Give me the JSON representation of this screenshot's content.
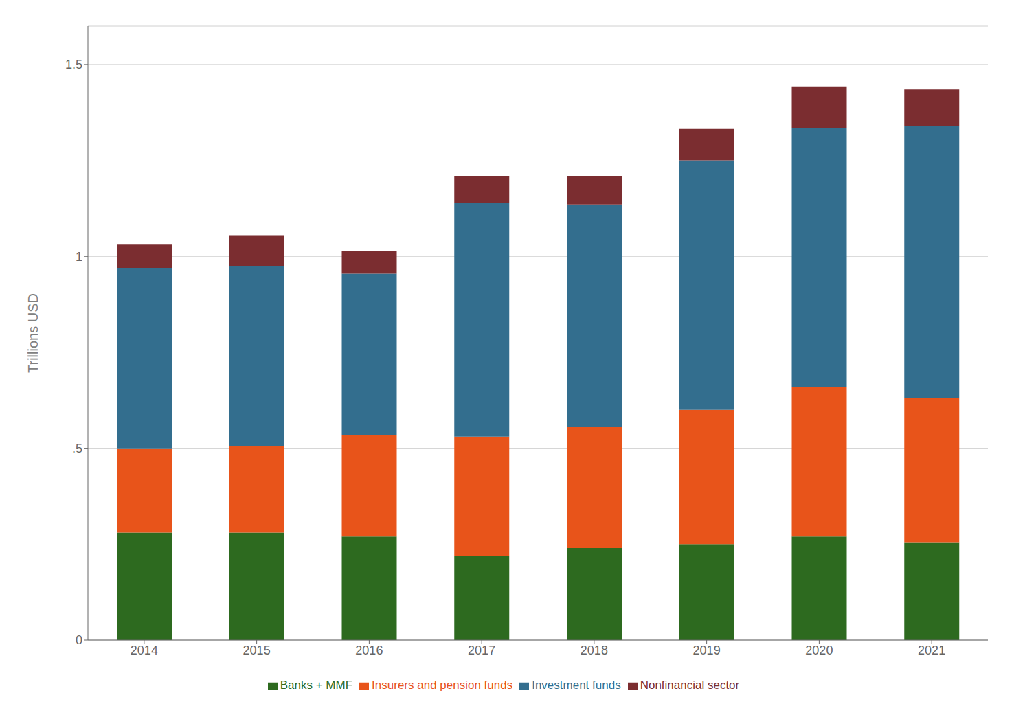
{
  "chart_data": {
    "type": "bar",
    "stacked": true,
    "categories": [
      "2014",
      "2015",
      "2016",
      "2017",
      "2018",
      "2019",
      "2020",
      "2021"
    ],
    "series": [
      {
        "name": "Banks + MMF",
        "color": "#2d6a1f",
        "values": [
          0.28,
          0.28,
          0.27,
          0.22,
          0.24,
          0.25,
          0.27,
          0.255
        ]
      },
      {
        "name": "Insurers and pension funds",
        "color": "#e8541a",
        "values": [
          0.22,
          0.225,
          0.265,
          0.31,
          0.315,
          0.35,
          0.39,
          0.375
        ]
      },
      {
        "name": "Investment funds",
        "color": "#336e8e",
        "values": [
          0.47,
          0.47,
          0.42,
          0.61,
          0.58,
          0.65,
          0.675,
          0.71
        ]
      },
      {
        "name": "Nonfinancial sector",
        "color": "#7b2d30",
        "values": [
          0.062,
          0.08,
          0.058,
          0.07,
          0.075,
          0.082,
          0.108,
          0.095
        ]
      }
    ],
    "ylabel": "Trillions USD",
    "ylim": [
      0,
      1.6
    ],
    "yticks": [
      0,
      {
        "value": 0.5,
        "label": ".5"
      },
      1,
      1.5
    ],
    "grid": true,
    "legend": "bottom"
  }
}
